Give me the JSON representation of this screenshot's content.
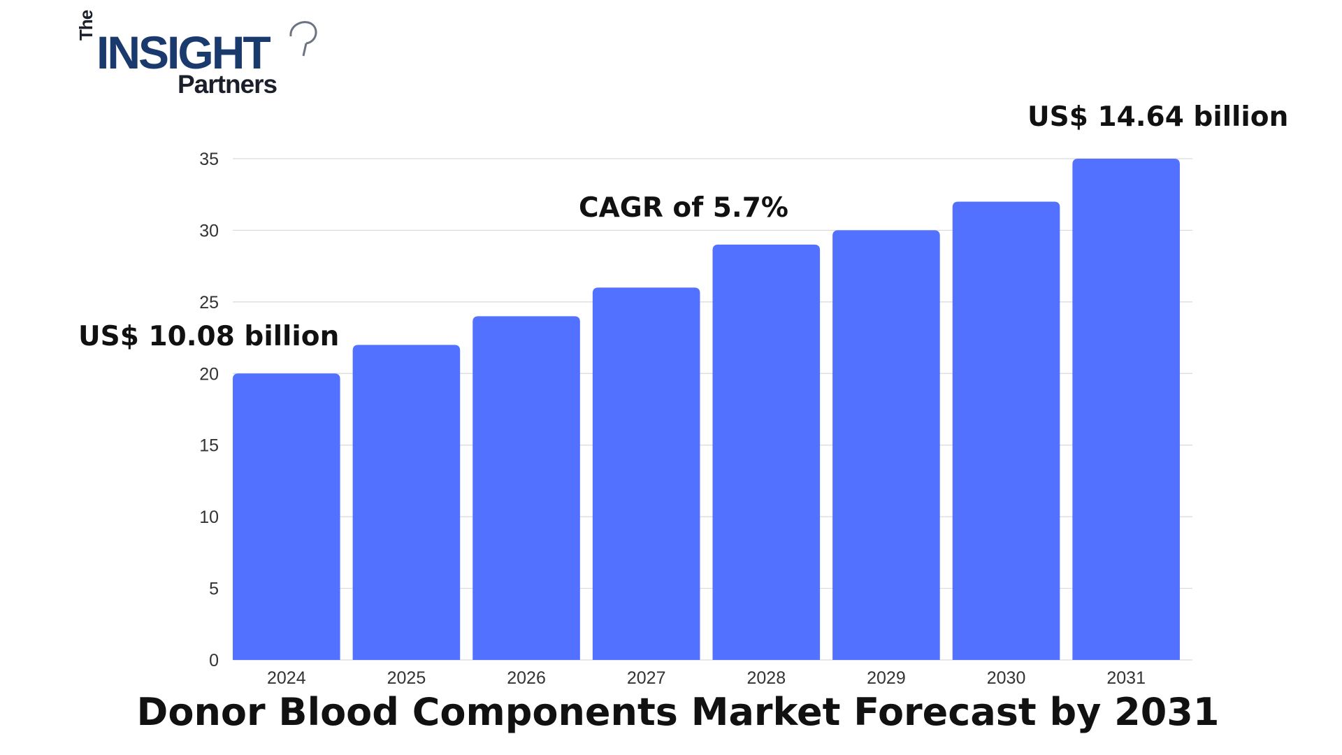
{
  "logo": {
    "the": "The",
    "insight": "INSIGHT",
    "partners": "Partners"
  },
  "annotations": {
    "start_value": "US$ 10.08 billion",
    "cagr": "CAGR of 5.7%",
    "end_value": "US$ 14.64 billion"
  },
  "colors": {
    "bar": "#5271ff",
    "grid": "#d9d9d9",
    "text": "#111111",
    "axis_text": "#333333"
  },
  "chart_data": {
    "type": "bar",
    "title": "Donor Blood Components Market Forecast by 2031",
    "xlabel": "",
    "ylabel": "",
    "categories": [
      "2024",
      "2025",
      "2026",
      "2027",
      "2028",
      "2029",
      "2030",
      "2031"
    ],
    "values": [
      20,
      22,
      24,
      26,
      29,
      30,
      32,
      35
    ],
    "ylim": [
      0,
      35
    ],
    "yticks": [
      0,
      5,
      10,
      15,
      20,
      25,
      30,
      35
    ],
    "grid": true,
    "legend": "none"
  }
}
